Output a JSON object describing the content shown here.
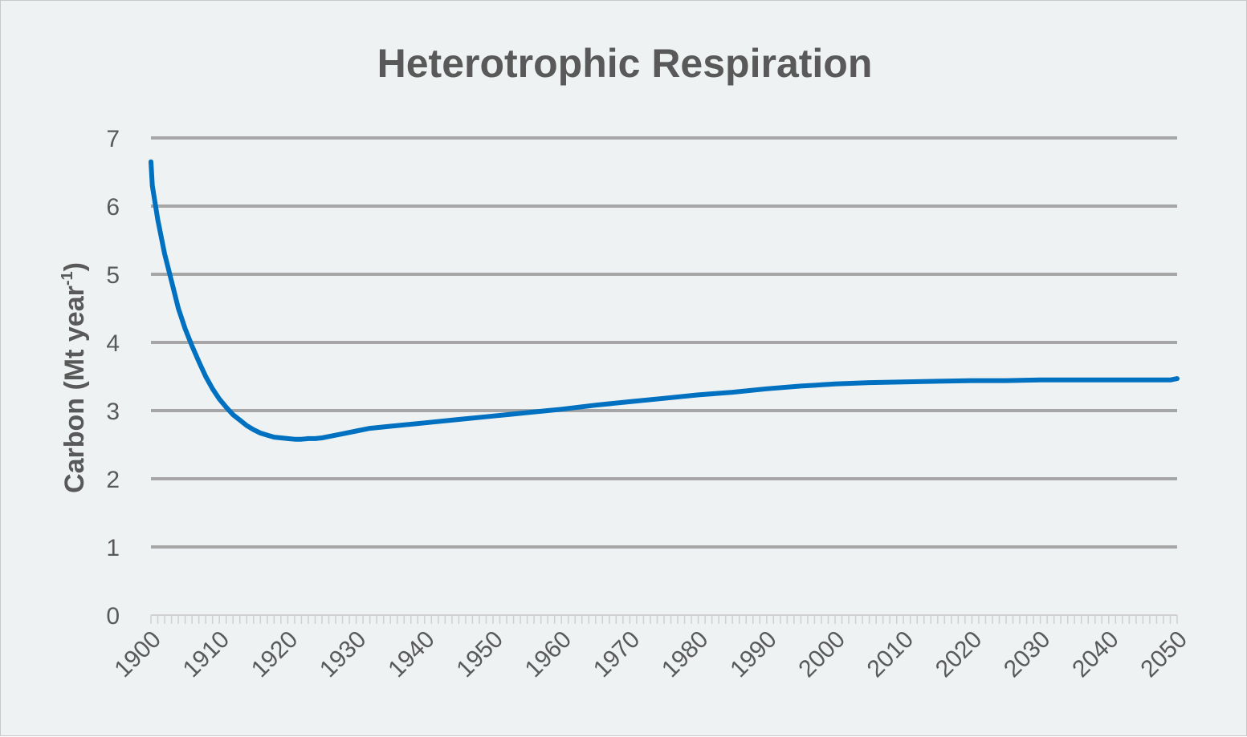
{
  "chart_data": {
    "type": "line",
    "title": "Heterotrophic Respiration",
    "xlabel": "",
    "ylabel": "Carbon (Mt year",
    "ylabel_superscript": "-1",
    "ylabel_close": ")",
    "xlim": [
      1900,
      2050
    ],
    "ylim": [
      0,
      7
    ],
    "y_ticks": [
      "0",
      "1",
      "2",
      "3",
      "4",
      "5",
      "6",
      "7"
    ],
    "x_ticks": [
      "1900",
      "1910",
      "1920",
      "1930",
      "1940",
      "1950",
      "1960",
      "1970",
      "1980",
      "1990",
      "2000",
      "2010",
      "2020",
      "2030",
      "2040",
      "2050"
    ],
    "grid": true,
    "legend": "none",
    "series": [
      {
        "color": "#0070c0",
        "x": [
          1900,
          1900.2,
          1901,
          1902,
          1903,
          1904,
          1905,
          1906,
          1907,
          1908,
          1909,
          1910,
          1911,
          1912,
          1913,
          1914,
          1915,
          1916,
          1917,
          1918,
          1919,
          1920,
          1921,
          1922,
          1923,
          1924,
          1925,
          1926,
          1928,
          1930,
          1932,
          1935,
          1938,
          1940,
          1945,
          1950,
          1955,
          1958,
          1960,
          1965,
          1970,
          1975,
          1980,
          1985,
          1990,
          1995,
          2000,
          2005,
          2010,
          2015,
          2020,
          2025,
          2030,
          2035,
          2040,
          2045,
          2049,
          2050
        ],
        "y": [
          6.65,
          6.3,
          5.8,
          5.3,
          4.9,
          4.5,
          4.2,
          3.95,
          3.72,
          3.5,
          3.32,
          3.17,
          3.05,
          2.94,
          2.86,
          2.78,
          2.72,
          2.67,
          2.64,
          2.61,
          2.6,
          2.59,
          2.58,
          2.58,
          2.59,
          2.59,
          2.6,
          2.62,
          2.66,
          2.7,
          2.74,
          2.77,
          2.8,
          2.82,
          2.87,
          2.92,
          2.97,
          3.0,
          3.02,
          3.08,
          3.13,
          3.18,
          3.23,
          3.27,
          3.32,
          3.36,
          3.39,
          3.41,
          3.42,
          3.43,
          3.44,
          3.44,
          3.45,
          3.45,
          3.45,
          3.45,
          3.45,
          3.47
        ]
      }
    ]
  }
}
